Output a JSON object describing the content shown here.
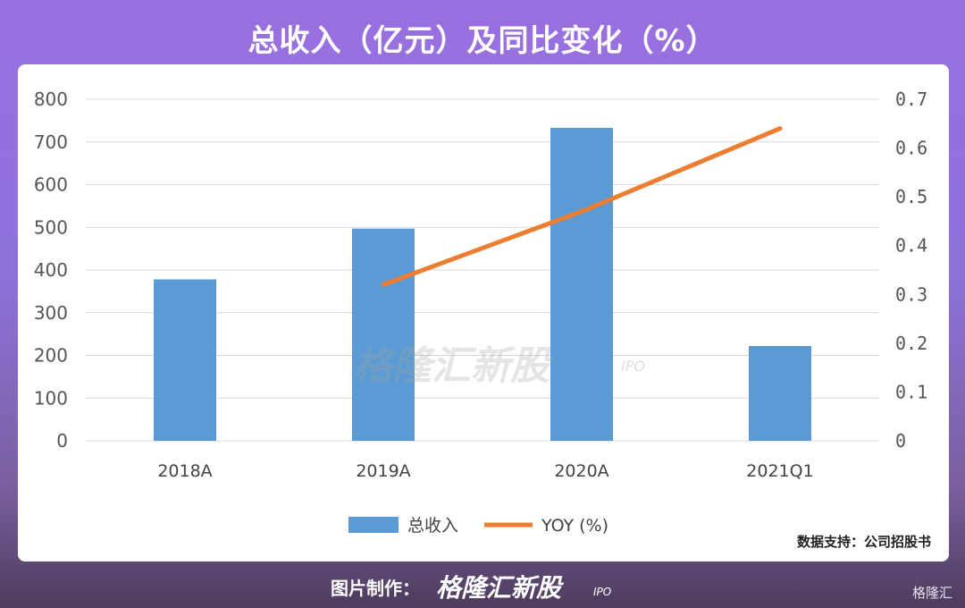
{
  "page": {
    "title": "总收入（亿元）及同比变化（%）",
    "source": "数据支持：公司招股书",
    "credit_label": "图片制作：",
    "brand": "格隆汇新股",
    "brand_sub": "IPO",
    "corner_logo": "格隆汇"
  },
  "chart_data": {
    "type": "bar",
    "categories": [
      "2018A",
      "2019A",
      "2020A",
      "2021Q1"
    ],
    "series": [
      {
        "name": "总收入",
        "type": "bar",
        "axis": "left",
        "values": [
          378,
          497,
          733,
          222
        ],
        "color": "#5b9bd5"
      },
      {
        "name": "YOY (%)",
        "type": "line",
        "axis": "right",
        "values": [
          null,
          0.32,
          0.47,
          0.64
        ],
        "color": "#ed7d31"
      }
    ],
    "ylim_left": [
      0,
      800
    ],
    "yticks_left": [
      "0",
      "100",
      "200",
      "300",
      "400",
      "500",
      "600",
      "700",
      "800"
    ],
    "ylim_right": [
      0,
      0.7
    ],
    "yticks_right": [
      "0",
      "0.1",
      "0.2",
      "0.3",
      "0.4",
      "0.5",
      "0.6",
      "0.7"
    ],
    "grid": true,
    "legend_position": "bottom"
  }
}
